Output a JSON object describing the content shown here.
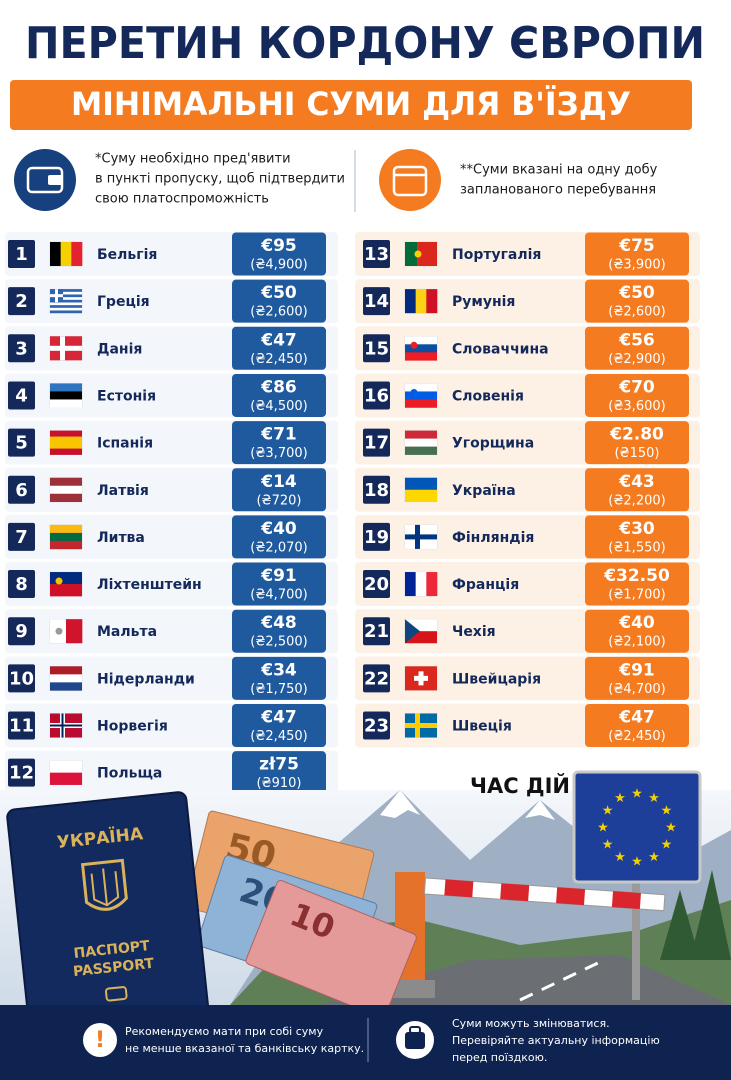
{
  "header": {
    "title": "ПЕРЕТИН КОРДОНУ ЄВРОПИ",
    "subtitle": "МІНІМАЛЬНІ СУМИ ДЛЯ В'ЇЗДУ"
  },
  "notes": [
    {
      "lines": [
        "*Суму необхідно пред'явити",
        "в пункті пропуску, щоб підтвердити",
        "свою платоспроможність"
      ]
    },
    {
      "lines": [
        "**Суми вказані на одну добу",
        "запланованого перебування"
      ]
    }
  ],
  "countries": [
    {
      "rank": 1,
      "name": "Бельгія",
      "amount": "€95",
      "local": "(₴4,900)"
    },
    {
      "rank": 2,
      "name": "Греція",
      "amount": "€50",
      "local": "(₴2,600)"
    },
    {
      "rank": 3,
      "name": "Данія",
      "amount": "€47",
      "local": "(₴2,450)"
    },
    {
      "rank": 4,
      "name": "Естонія",
      "amount": "€86",
      "local": "(₴4,500)"
    },
    {
      "rank": 5,
      "name": "Іспанія",
      "amount": "€71",
      "local": "(₴3,700)"
    },
    {
      "rank": 6,
      "name": "Латвія",
      "amount": "€14",
      "local": "(₴720)"
    },
    {
      "rank": 7,
      "name": "Литва",
      "amount": "€40",
      "local": "(₴2,070)"
    },
    {
      "rank": 8,
      "name": "Ліхтенштейн",
      "amount": "€91",
      "local": "(₴4,700)"
    },
    {
      "rank": 9,
      "name": "Мальта",
      "amount": "€48",
      "local": "(₴2,500)"
    },
    {
      "rank": 10,
      "name": "Нідерланди",
      "amount": "€34",
      "local": "(₴1,750)"
    },
    {
      "rank": 11,
      "name": "Норвегія",
      "amount": "€47",
      "local": "(₴2,450)"
    },
    {
      "rank": 12,
      "name": "Польща",
      "amount": "zł75",
      "local": "(₴910)"
    },
    {
      "rank": 13,
      "name": "Португалія",
      "amount": "€75",
      "local": "(₴3,900)"
    },
    {
      "rank": 14,
      "name": "Румунія",
      "amount": "€50",
      "local": "(₴2,600)"
    },
    {
      "rank": 15,
      "name": "Словаччина",
      "amount": "€56",
      "local": "(₴2,900)"
    },
    {
      "rank": 16,
      "name": "Словенія",
      "amount": "€70",
      "local": "(₴3,600)"
    },
    {
      "rank": 17,
      "name": "Угорщина",
      "amount": "€2.80",
      "local": "(₴150)"
    },
    {
      "rank": 18,
      "name": "Україна",
      "amount": "€43",
      "local": "(₴2,200)"
    },
    {
      "rank": 19,
      "name": "Фінляндія",
      "amount": "€30",
      "local": "(₴1,550)"
    },
    {
      "rank": 20,
      "name": "Франція",
      "amount": "€32.50",
      "local": "(₴1,700)"
    },
    {
      "rank": 21,
      "name": "Чехія",
      "amount": "€40",
      "local": "(₴2,100)"
    },
    {
      "rank": 22,
      "name": "Швейцарія",
      "amount": "€91",
      "local": "(₴4,700)"
    },
    {
      "rank": 23,
      "name": "Швеція",
      "amount": "€47",
      "local": "(₴2,450)"
    }
  ],
  "illustration": {
    "caption": "ЧАС ДІЙ",
    "passport_country": "УКРАЇНА",
    "passport_label_ua": "ПАСПОРТ",
    "passport_label_en": "PASSPORT",
    "banknotes": [
      "50",
      "20",
      "10"
    ]
  },
  "footer": [
    {
      "lines": [
        "Рекомендуємо мати при собі суму",
        "не менше вказаної та банківську картку."
      ]
    },
    {
      "lines": [
        "Суми можуть змінюватися.",
        "Перевіряйте актуальну інформацію",
        "перед поїздкою."
      ]
    }
  ]
}
